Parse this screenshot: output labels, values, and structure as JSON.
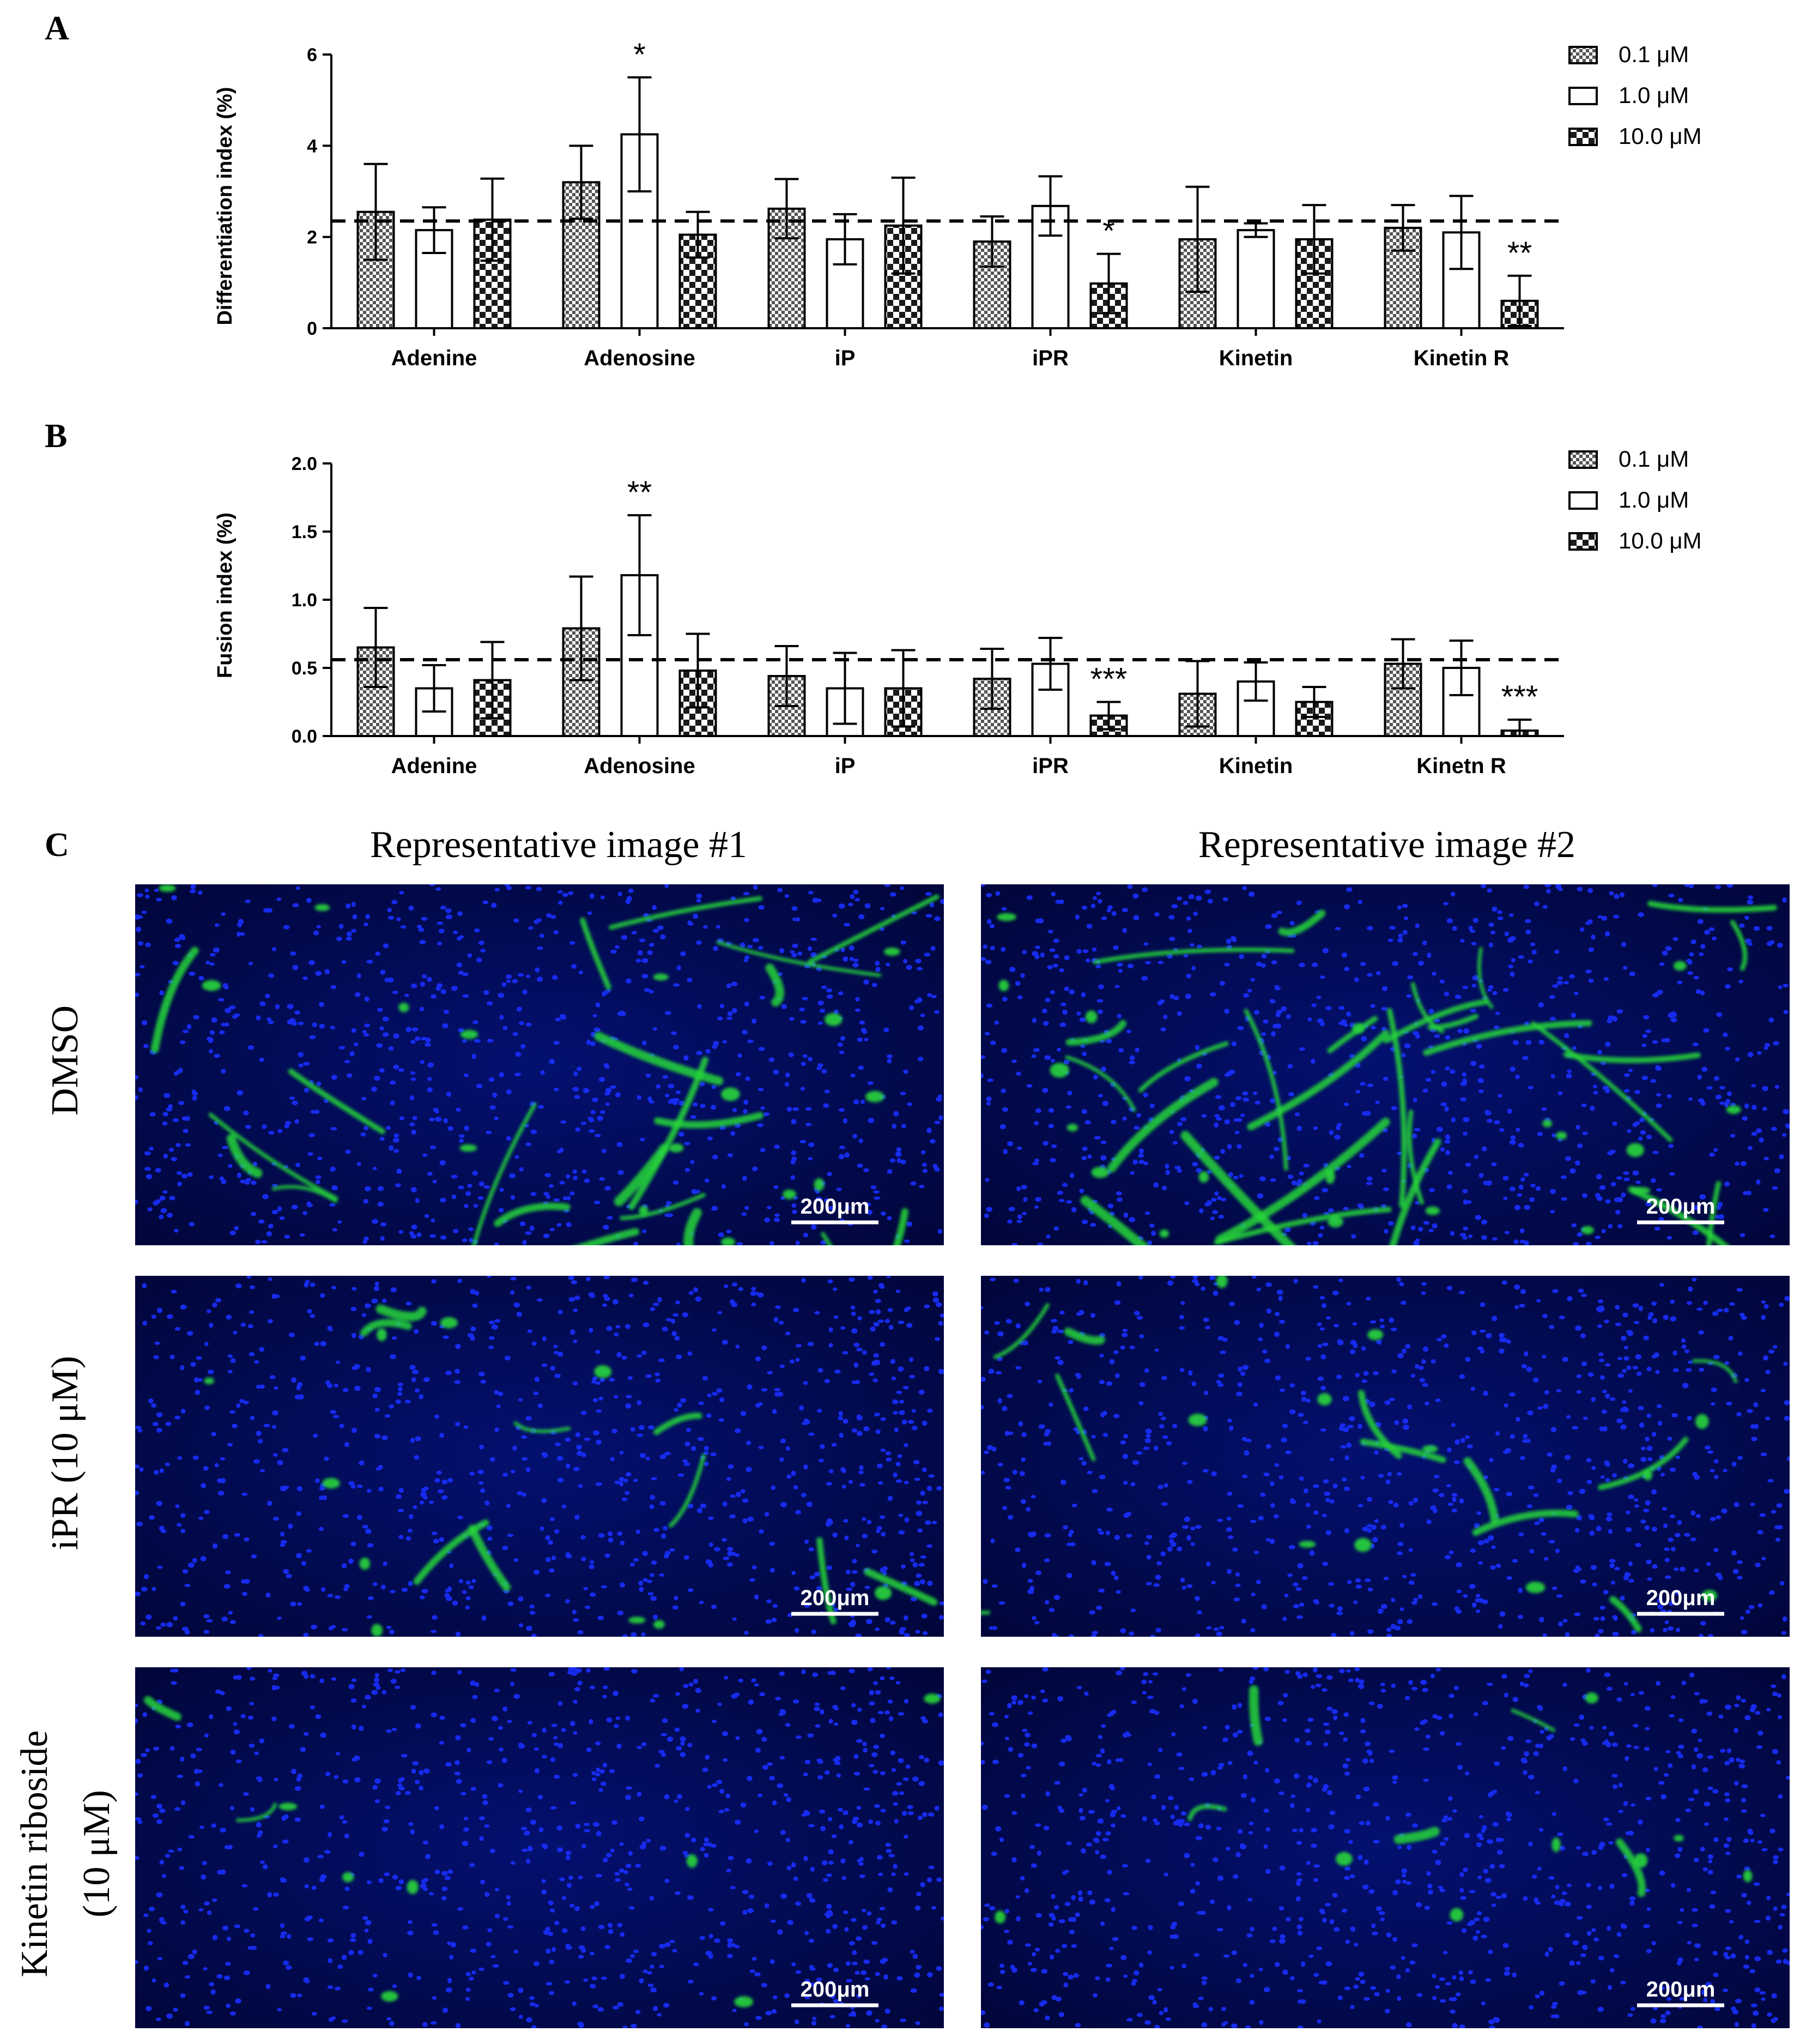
{
  "colors": {
    "bar_edge": "#000000",
    "open_fill": "#ffffff",
    "nuclei": "#1a2fff",
    "myotube": "#27d63a",
    "background": "#020a5a"
  },
  "panels": [
    {
      "letter": "A",
      "chart_data": {
        "type": "bar",
        "ylabel": "Differentiation index (%)",
        "ylim": [
          0,
          6
        ],
        "yticks": [
          "0",
          "2",
          "4",
          "6"
        ],
        "categories": [
          "Adenine",
          "Adenosine",
          "iP",
          "iPR",
          "Kinetin",
          "Kinetin R"
        ],
        "legend_position": "top-right",
        "reference_line": 2.35,
        "series": [
          {
            "name": "0.1 μM",
            "pattern": "dense-check",
            "values": [
              2.55,
              3.2,
              2.62,
              1.9,
              1.95,
              2.2
            ],
            "errors": [
              1.05,
              0.8,
              0.65,
              0.55,
              1.15,
              0.5
            ]
          },
          {
            "name": "1.0 μM",
            "pattern": "open",
            "values": [
              2.15,
              4.25,
              1.95,
              2.68,
              2.15,
              2.1
            ],
            "errors": [
              0.5,
              1.25,
              0.55,
              0.65,
              0.15,
              0.8
            ]
          },
          {
            "name": "10.0 μM",
            "pattern": "coarse-check",
            "values": [
              2.38,
              2.05,
              2.25,
              0.98,
              1.95,
              0.6
            ],
            "errors": [
              0.9,
              0.5,
              1.05,
              0.65,
              0.75,
              0.55
            ]
          }
        ],
        "annotations": [
          {
            "category": 1,
            "series": 1,
            "text": "*"
          },
          {
            "category": 3,
            "series": 2,
            "text": "*"
          },
          {
            "category": 5,
            "series": 2,
            "text": "**"
          }
        ]
      }
    },
    {
      "letter": "B",
      "chart_data": {
        "type": "bar",
        "ylabel": "Fusion index (%)",
        "ylim": [
          0,
          2.0
        ],
        "yticks": [
          "0.0",
          "0.5",
          "1.0",
          "1.5",
          "2.0"
        ],
        "categories": [
          "Adenine",
          "Adenosine",
          "iP",
          "iPR",
          "Kinetin",
          "Kinetn R"
        ],
        "legend_position": "top-right",
        "reference_line": 0.56,
        "series": [
          {
            "name": "0.1 μM",
            "pattern": "dense-check",
            "values": [
              0.65,
              0.79,
              0.44,
              0.42,
              0.31,
              0.53
            ],
            "errors": [
              0.29,
              0.38,
              0.22,
              0.22,
              0.24,
              0.18
            ]
          },
          {
            "name": "1.0 μM",
            "pattern": "open",
            "values": [
              0.35,
              1.18,
              0.35,
              0.53,
              0.4,
              0.5
            ],
            "errors": [
              0.17,
              0.44,
              0.26,
              0.19,
              0.14,
              0.2
            ]
          },
          {
            "name": "10.0 μM",
            "pattern": "coarse-check",
            "values": [
              0.41,
              0.48,
              0.35,
              0.15,
              0.25,
              0.04
            ],
            "errors": [
              0.28,
              0.27,
              0.28,
              0.1,
              0.11,
              0.08
            ]
          }
        ],
        "annotations": [
          {
            "category": 1,
            "series": 1,
            "text": "**"
          },
          {
            "category": 3,
            "series": 2,
            "text": "***"
          },
          {
            "category": 5,
            "series": 2,
            "text": "***"
          }
        ]
      }
    }
  ],
  "panel_c": {
    "letter": "C",
    "column_titles": [
      "Representative image #1",
      "Representative image #2"
    ],
    "row_labels": [
      "DMSO",
      "iPR (10 μM)",
      "Kinetin riboside",
      "(10 μM)"
    ],
    "scale_bar": "200μm",
    "images": [
      {
        "row": 0,
        "col": 0,
        "myotube_level": 0.7,
        "seed": 11
      },
      {
        "row": 0,
        "col": 1,
        "myotube_level": 0.9,
        "seed": 23
      },
      {
        "row": 1,
        "col": 0,
        "myotube_level": 0.3,
        "seed": 37
      },
      {
        "row": 1,
        "col": 1,
        "myotube_level": 0.35,
        "seed": 41
      },
      {
        "row": 2,
        "col": 0,
        "myotube_level": 0.05,
        "seed": 53
      },
      {
        "row": 2,
        "col": 1,
        "myotube_level": 0.15,
        "seed": 67
      }
    ]
  }
}
